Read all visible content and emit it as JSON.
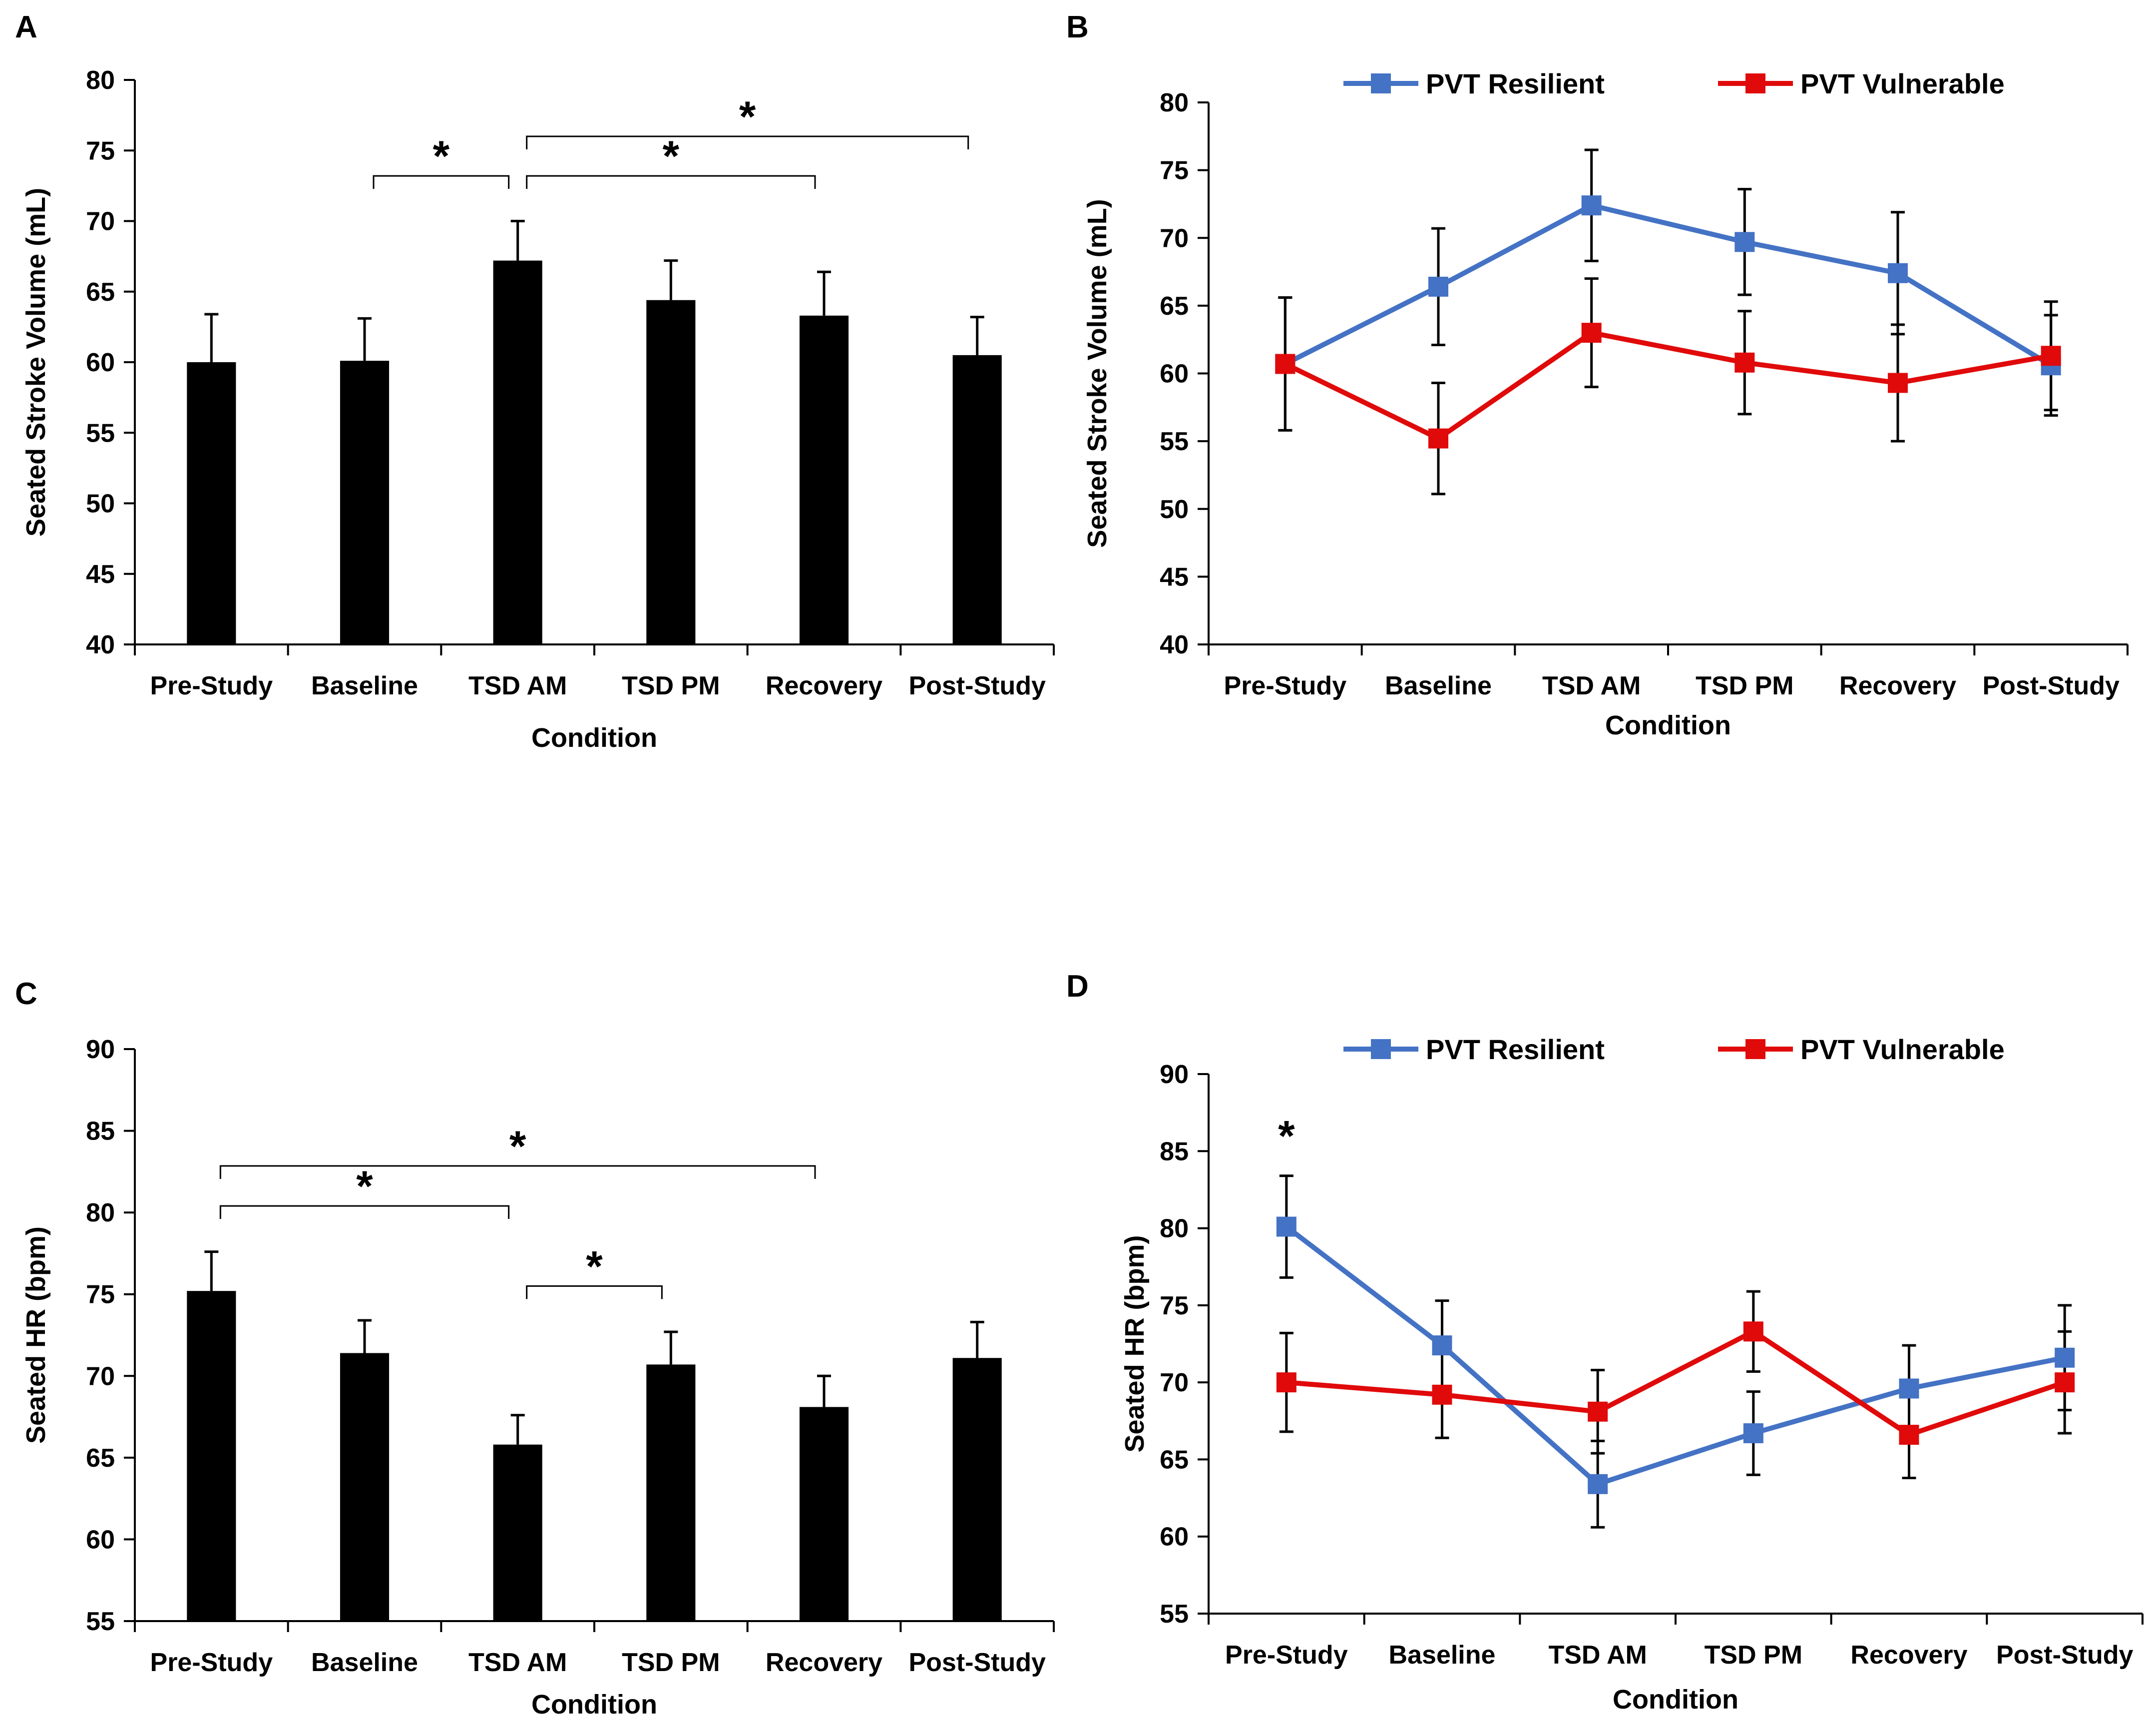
{
  "chart_data": [
    {
      "panel": "A",
      "type": "bar",
      "categories": [
        "Pre-Study",
        "Baseline",
        "TSD AM",
        "TSD PM",
        "Recovery",
        "Post-Study"
      ],
      "values": [
        60.0,
        60.1,
        67.2,
        64.4,
        63.3,
        60.5
      ],
      "errors": [
        3.4,
        3.0,
        2.8,
        2.8,
        3.1,
        2.7
      ],
      "xlabel": "Condition",
      "ylabel": "Seated Stroke Volume (mL)",
      "ylim": [
        40,
        80
      ],
      "yticks": [
        "40",
        "45",
        "50",
        "55",
        "60",
        "65",
        "70",
        "75",
        "80"
      ],
      "bar_color": "#000000",
      "significance": [
        {
          "from": "Baseline",
          "to": "TSD AM",
          "label": "*"
        },
        {
          "from": "TSD AM",
          "to": "Recovery",
          "label": "*"
        },
        {
          "from": "TSD AM",
          "to": "Post-Study",
          "label": "*"
        }
      ]
    },
    {
      "panel": "B",
      "type": "line",
      "categories": [
        "Pre-Study",
        "Baseline",
        "TSD AM",
        "TSD PM",
        "Recovery",
        "Post-Study"
      ],
      "series": [
        {
          "name": "PVT Resilient",
          "color": "#4472C4",
          "values": [
            60.7,
            66.4,
            72.4,
            69.7,
            67.4,
            60.6
          ],
          "errors": [
            4.9,
            4.3,
            4.1,
            3.9,
            4.5,
            3.7
          ]
        },
        {
          "name": "PVT Vulnerable",
          "color": "#E00A0A",
          "values": [
            60.7,
            55.2,
            63.0,
            60.8,
            59.3,
            61.3
          ],
          "errors": [
            4.9,
            4.1,
            4.0,
            3.8,
            4.3,
            4.0
          ]
        }
      ],
      "xlabel": "Condition",
      "ylabel": "Seated Stroke Volume (mL)",
      "ylim": [
        40,
        80
      ],
      "yticks": [
        "40",
        "45",
        "50",
        "55",
        "60",
        "65",
        "70",
        "75",
        "80"
      ],
      "legend": "top"
    },
    {
      "panel": "C",
      "type": "bar",
      "categories": [
        "Pre-Study",
        "Baseline",
        "TSD AM",
        "TSD PM",
        "Recovery",
        "Post-Study"
      ],
      "values": [
        75.2,
        71.4,
        65.8,
        70.7,
        68.1,
        71.1
      ],
      "errors": [
        2.4,
        2.0,
        1.8,
        2.0,
        1.9,
        2.2
      ],
      "xlabel": "Condition",
      "ylabel": "Seated HR (bpm)",
      "ylim": [
        55,
        90
      ],
      "yticks": [
        "55",
        "60",
        "65",
        "70",
        "75",
        "80",
        "85",
        "90"
      ],
      "bar_color": "#000000",
      "significance": [
        {
          "from": "Pre-Study",
          "to": "TSD AM",
          "label": "*"
        },
        {
          "from": "TSD AM",
          "to": "TSD PM",
          "label": "*"
        },
        {
          "from": "Pre-Study",
          "to": "Recovery",
          "label": "*"
        }
      ]
    },
    {
      "panel": "D",
      "type": "line",
      "categories": [
        "Pre-Study",
        "Baseline",
        "TSD AM",
        "TSD PM",
        "Recovery",
        "Post-Study"
      ],
      "series": [
        {
          "name": "PVT Resilient",
          "color": "#4472C4",
          "values": [
            80.1,
            72.4,
            63.4,
            66.7,
            69.6,
            71.6
          ],
          "errors": [
            3.3,
            2.9,
            2.8,
            2.7,
            2.8,
            3.4
          ]
        },
        {
          "name": "PVT Vulnerable",
          "color": "#E00A0A",
          "values": [
            70.0,
            69.2,
            68.1,
            73.3,
            66.6,
            70.0
          ],
          "errors": [
            3.2,
            2.8,
            2.7,
            2.6,
            2.8,
            3.3
          ]
        }
      ],
      "xlabel": "Condition",
      "ylabel": "Seated HR (bpm)",
      "ylim": [
        55,
        90
      ],
      "yticks": [
        "55",
        "60",
        "65",
        "70",
        "75",
        "80",
        "85",
        "90"
      ],
      "legend": "top",
      "annotations": [
        {
          "category": "Pre-Study",
          "label": "*"
        }
      ]
    }
  ]
}
